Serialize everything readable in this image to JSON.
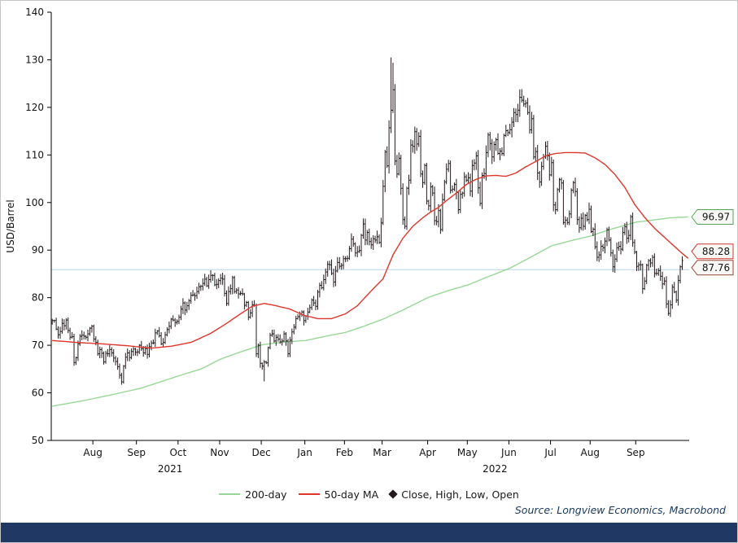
{
  "figure": {
    "background": "#ffffff",
    "footer_bar_color": "#1f3864"
  },
  "source": "Source: Longview Economics, Macrobond",
  "legend": {
    "items": [
      {
        "label": "200-day",
        "swatch": "line",
        "series": "ma200"
      },
      {
        "label": "50-day MA",
        "swatch": "line",
        "series": "ma50"
      },
      {
        "label": "Close, High, Low, Open",
        "swatch": "marker",
        "series": "price"
      }
    ]
  },
  "chart_data": {
    "type": "candlestick",
    "title": "",
    "xlabel": "",
    "ylabel": "USD/Barrel",
    "ylim": [
      50,
      140
    ],
    "yticks": [
      50,
      60,
      70,
      80,
      90,
      100,
      110,
      120,
      130,
      140
    ],
    "grid": false,
    "legend_position": "bottom",
    "x_axis": {
      "total_days": 322,
      "months": [
        {
          "label": "Aug",
          "day": 21
        },
        {
          "label": "Sep",
          "day": 43
        },
        {
          "label": "Oct",
          "day": 64
        },
        {
          "label": "Nov",
          "day": 85
        },
        {
          "label": "Dec",
          "day": 106
        },
        {
          "label": "Jan",
          "day": 128
        },
        {
          "label": "Feb",
          "day": 148
        },
        {
          "label": "Mar",
          "day": 167
        },
        {
          "label": "Apr",
          "day": 190
        },
        {
          "label": "May",
          "day": 210
        },
        {
          "label": "Jun",
          "day": 231
        },
        {
          "label": "Jul",
          "day": 252
        },
        {
          "label": "Aug",
          "day": 272
        },
        {
          "label": "Sep",
          "day": 295
        }
      ],
      "years": [
        {
          "label": "2021",
          "day": 60
        },
        {
          "label": "2022",
          "day": 224
        }
      ]
    },
    "reference_line": {
      "value": 85.9,
      "color": "#b9d3e6"
    },
    "series": {
      "price": {
        "name": "Close, High, Low, Open",
        "color": "#241a1c",
        "label_color": "#9c4236",
        "last_value": "87.76",
        "closes": [
          75.2,
          75.2,
          73.4,
          72.2,
          72.9,
          74.6,
          74.1,
          75.3,
          73.1,
          71.7,
          71.8,
          66.4,
          67.4,
          70.3,
          71.9,
          72.1,
          71.9,
          71.7,
          72.4,
          73.6,
          74.0,
          71.3,
          70.6,
          68.2,
          69.1,
          68.3,
          66.5,
          68.3,
          68.2,
          69.1,
          68.4,
          67.3,
          66.6,
          65.5,
          63.7,
          62.3,
          65.6,
          67.5,
          68.4,
          67.4,
          68.7,
          69.2,
          68.5,
          68.6,
          70.0,
          69.3,
          68.4,
          69.3,
          68.1,
          69.7,
          70.5,
          70.5,
          72.6,
          73.0,
          72.0,
          70.3,
          70.6,
          72.2,
          73.3,
          74.0,
          75.5,
          75.3,
          74.8,
          75.0,
          75.9,
          77.6,
          78.9,
          77.4,
          78.3,
          79.4,
          80.5,
          80.6,
          80.4,
          81.3,
          82.3,
          82.4,
          83.0,
          83.9,
          82.5,
          83.8,
          84.7,
          84.7,
          82.7,
          82.8,
          83.6,
          84.1,
          83.9,
          80.9,
          78.8,
          81.3,
          81.9,
          84.2,
          81.3,
          81.6,
          80.8,
          80.9,
          80.8,
          78.4,
          79.0,
          75.9,
          76.8,
          78.5,
          78.4,
          68.2,
          70.0,
          66.2,
          65.6,
          66.5,
          66.3,
          69.5,
          72.1,
          72.4,
          70.9,
          71.7,
          71.3,
          70.7,
          70.9,
          72.4,
          70.9,
          68.2,
          71.1,
          72.8,
          73.8,
          75.6,
          76.0,
          76.6,
          77.0,
          75.2,
          76.1,
          77.0,
          77.9,
          79.5,
          78.9,
          78.2,
          81.2,
          82.6,
          82.1,
          83.8,
          85.4,
          87.0,
          86.9,
          85.1,
          83.3,
          85.6,
          87.4,
          86.6,
          86.8,
          88.2,
          88.2,
          88.3,
          90.3,
          92.3,
          91.3,
          89.4,
          89.7,
          89.9,
          93.1,
          95.5,
          92.1,
          93.7,
          91.8,
          91.1,
          92.4,
          92.1,
          92.8,
          91.6,
          95.7,
          103.4,
          110.6,
          107.7,
          115.7,
          119.4,
          123.7,
          108.7,
          106.0,
          109.3,
          103.0,
          96.4,
          95.0,
          103.0,
          104.7,
          112.1,
          111.8,
          114.9,
          112.3,
          113.9,
          106.0,
          104.2,
          107.8,
          100.3,
          99.3,
          103.3,
          102.0,
          96.2,
          96.0,
          98.3,
          94.3,
          100.6,
          104.3,
          107.0,
          108.2,
          102.6,
          102.8,
          103.8,
          102.1,
          98.5,
          101.7,
          102.0,
          105.4,
          104.7,
          105.2,
          102.4,
          107.8,
          108.3,
          109.8,
          103.1,
          99.8,
          105.7,
          106.1,
          110.5,
          114.2,
          112.4,
          109.6,
          112.2,
          113.2,
          110.3,
          110.8,
          110.3,
          114.1,
          115.1,
          114.7,
          115.3,
          116.9,
          118.9,
          118.5,
          119.4,
          122.1,
          121.5,
          120.7,
          120.9,
          118.9,
          115.3,
          117.6,
          109.6,
          110.7,
          106.2,
          104.3,
          107.6,
          109.6,
          111.8,
          109.8,
          105.8,
          108.4,
          99.5,
          98.5,
          102.7,
          104.8,
          104.1,
          95.8,
          96.3,
          95.8,
          97.6,
          102.6,
          104.2,
          102.3,
          96.4,
          94.7,
          96.7,
          95.0,
          97.3,
          96.4,
          98.6,
          93.9,
          94.4,
          90.7,
          88.5,
          89.0,
          90.8,
          90.5,
          91.9,
          94.3,
          92.1,
          89.4,
          86.5,
          88.1,
          90.5,
          90.8,
          90.2,
          93.7,
          94.9,
          92.5,
          93.1,
          97.0,
          91.6,
          89.6,
          86.6,
          86.9,
          86.9,
          81.9,
          83.5,
          86.8,
          87.8,
          87.3,
          88.5,
          85.1,
          85.1,
          85.7,
          84.5,
          82.9,
          83.5,
          78.7,
          76.7,
          78.5,
          82.2,
          81.2,
          79.5,
          83.6,
          86.5,
          87.8
        ],
        "high_overrides": {
          "171": 130.5,
          "172": 129.4
        },
        "low_overrides": {
          "35": 61.7,
          "107": 62.4,
          "311": 76.2
        }
      },
      "ma50": {
        "name": "50-day MA",
        "color": "#e0352b",
        "label_color": "#d23a2e",
        "last_value": "88.28",
        "anchors": [
          [
            0,
            71.0
          ],
          [
            12,
            70.6
          ],
          [
            25,
            70.3
          ],
          [
            38,
            69.9
          ],
          [
            50,
            69.4
          ],
          [
            60,
            69.8
          ],
          [
            70,
            70.6
          ],
          [
            80,
            72.5
          ],
          [
            88,
            74.6
          ],
          [
            95,
            76.6
          ],
          [
            101,
            78.2
          ],
          [
            107,
            78.8
          ],
          [
            113,
            78.3
          ],
          [
            120,
            77.6
          ],
          [
            127,
            76.3
          ],
          [
            134,
            75.6
          ],
          [
            141,
            75.6
          ],
          [
            148,
            76.6
          ],
          [
            154,
            78.3
          ],
          [
            160,
            81.0
          ],
          [
            167,
            84.0
          ],
          [
            172,
            89.0
          ],
          [
            177,
            92.5
          ],
          [
            182,
            95.0
          ],
          [
            187,
            96.8
          ],
          [
            191,
            98.0
          ],
          [
            195,
            99.0
          ],
          [
            199,
            100.4
          ],
          [
            204,
            102.0
          ],
          [
            209,
            103.8
          ],
          [
            214,
            104.9
          ],
          [
            219,
            105.6
          ],
          [
            224,
            105.7
          ],
          [
            229,
            105.5
          ],
          [
            234,
            106.2
          ],
          [
            239,
            107.5
          ],
          [
            244,
            108.6
          ],
          [
            249,
            109.8
          ],
          [
            254,
            110.3
          ],
          [
            259,
            110.5
          ],
          [
            264,
            110.5
          ],
          [
            269,
            110.4
          ],
          [
            274,
            109.4
          ],
          [
            279,
            108.0
          ],
          [
            284,
            105.9
          ],
          [
            289,
            103.2
          ],
          [
            294,
            99.6
          ],
          [
            299,
            96.9
          ],
          [
            304,
            94.6
          ],
          [
            309,
            92.7
          ],
          [
            314,
            90.8
          ],
          [
            318,
            89.3
          ],
          [
            321,
            88.28
          ]
        ]
      },
      "ma200": {
        "name": "200-day",
        "color": "#97d897",
        "label_color": "#53a653",
        "last_value": "96.97",
        "anchors": [
          [
            0,
            57.2
          ],
          [
            15,
            58.3
          ],
          [
            30,
            59.6
          ],
          [
            45,
            61.0
          ],
          [
            64,
            63.6
          ],
          [
            75,
            65.0
          ],
          [
            85,
            67.1
          ],
          [
            95,
            68.6
          ],
          [
            106,
            70.1
          ],
          [
            117,
            70.7
          ],
          [
            128,
            71.0
          ],
          [
            138,
            71.9
          ],
          [
            148,
            72.7
          ],
          [
            158,
            74.1
          ],
          [
            167,
            75.5
          ],
          [
            177,
            77.4
          ],
          [
            190,
            80.1
          ],
          [
            200,
            81.5
          ],
          [
            210,
            82.7
          ],
          [
            220,
            84.4
          ],
          [
            231,
            86.2
          ],
          [
            241,
            88.4
          ],
          [
            252,
            90.9
          ],
          [
            262,
            92.0
          ],
          [
            272,
            93.0
          ],
          [
            282,
            94.4
          ],
          [
            295,
            95.9
          ],
          [
            305,
            96.4
          ],
          [
            312,
            96.8
          ],
          [
            321,
            96.97
          ]
        ]
      }
    }
  }
}
